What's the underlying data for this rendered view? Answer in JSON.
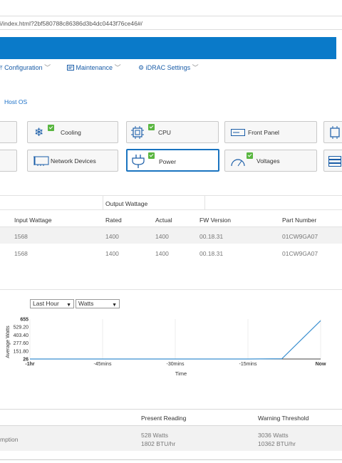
{
  "browser": {
    "url": "i/index.html?2bf580788c86386d3b4dc0443f76ce46#/"
  },
  "nav": {
    "configuration": "Configuration",
    "maintenance": "Maintenance",
    "idrac_settings": "iDRAC Settings"
  },
  "breadcrumb": {
    "host_os": "Host OS"
  },
  "tiles": {
    "cooling": "Cooling",
    "cpu": "CPU",
    "front_panel": "Front Panel",
    "network_devices": "Network Devices",
    "power": "Power",
    "voltages": "Voltages"
  },
  "psu_table": {
    "group_header": "Output Wattage",
    "headers": [
      "Input Wattage",
      "Rated",
      "Actual",
      "FW Version",
      "Part Number"
    ],
    "rows": [
      [
        "1568",
        "1400",
        "1400",
        "00.18.31",
        "01CW9GA07"
      ],
      [
        "1568",
        "1400",
        "1400",
        "00.18.31",
        "01CW9GA07"
      ]
    ]
  },
  "chart_controls": {
    "range": "Last Hour",
    "unit": "Watts"
  },
  "chart_data": {
    "type": "line",
    "ylabel": "Average Watts",
    "xlabel": "Time",
    "x_ticks": [
      "-1hr",
      "-45mins",
      "-30mins",
      "-15mins",
      "Now"
    ],
    "y_ticks": [
      "26",
      "151.80",
      "277.60",
      "403.40",
      "529.20",
      "655"
    ],
    "ylim": [
      26,
      655
    ],
    "series": [
      {
        "minutes": [
          -60,
          -45,
          -30,
          -15,
          -8,
          0
        ],
        "values": [
          26,
          26,
          26,
          26,
          30,
          630
        ]
      }
    ],
    "color": "#3a8fd0"
  },
  "consumption_table": {
    "headers": [
      "Present Reading",
      "Warning Threshold"
    ],
    "row_label": "mption",
    "present_watts": "528 Watts",
    "present_btu": "1802 BTU/hr",
    "warning_watts": "3036 Watts",
    "warning_btu": "10362 BTU/hr"
  }
}
